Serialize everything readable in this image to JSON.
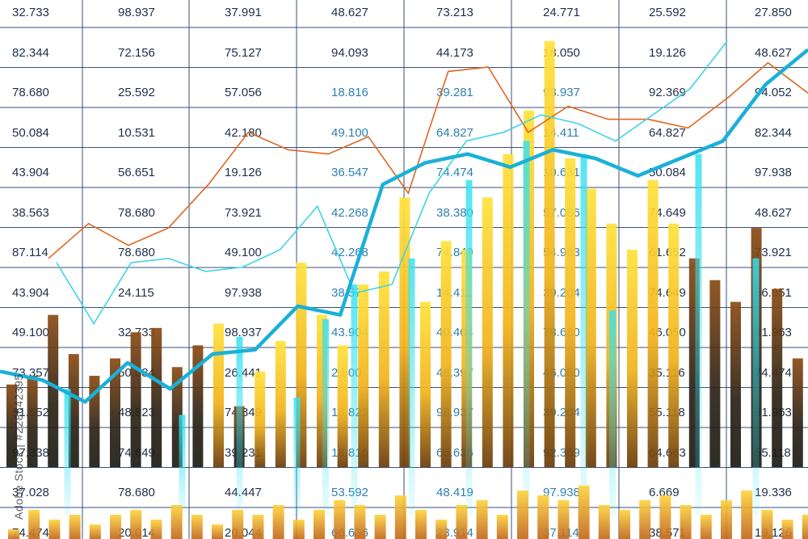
{
  "watermark": "Adobe Stock | #228642395",
  "table": {
    "rows": [
      [
        "32.733",
        "98.937",
        "37.991",
        "48.627",
        "73.213",
        "24.771",
        "25.592",
        "27.850"
      ],
      [
        "82.344",
        "72.156",
        "75.127",
        "94.093",
        "44.173",
        "18.050",
        "19.126",
        "48.627"
      ],
      [
        "78.680",
        "25.592",
        "57.056",
        "18.816",
        "39.281",
        "98.937",
        "92.369",
        "94.052"
      ],
      [
        "50.084",
        "10.531",
        "42.180",
        "49.100",
        "64.827",
        "14.411",
        "64.827",
        "82.344"
      ],
      [
        "43.904",
        "56.651",
        "19.126",
        "36.547",
        "74.474",
        "10.631",
        "50.084",
        "97.938"
      ],
      [
        "38.563",
        "78.680",
        "73.921",
        "42.268",
        "38.380",
        "57.056",
        "74.649",
        "48.627"
      ],
      [
        "87.114",
        "78.680",
        "49.100",
        "42.268",
        "74.849",
        "54.963",
        "61.652",
        "73.921"
      ],
      [
        "43.904",
        "24.115",
        "97.938",
        "38.571",
        "14.411",
        "39.204",
        "74.649",
        "56.651"
      ],
      [
        "49.100",
        "32.733",
        "98.937",
        "43.904",
        "40.404",
        "78.680",
        "46.050",
        "91.963"
      ],
      [
        "73.357",
        "50.084",
        "26.441",
        "2.500",
        "48.397",
        "46.050",
        "35.116",
        "74.474"
      ],
      [
        "91.652",
        "48.823",
        "74.849",
        "18.823",
        "98.937",
        "39.204",
        "55.118",
        "91.963"
      ],
      [
        "97.338",
        "74.649",
        "39.231",
        "18.816",
        "66.636",
        "92.369",
        "64.663",
        "55.118"
      ],
      [
        "37.028",
        "78.680",
        "44.447",
        "53.592",
        "48.419",
        "97.938",
        "6.669",
        "19.336"
      ],
      [
        "74.474",
        "20.014",
        "20.044",
        "66.636",
        "23.914",
        "37.114",
        "38.571",
        "19.126"
      ]
    ]
  },
  "colors": {
    "gridline": "#3a4f7a",
    "orange_line": "#e0661e",
    "cyan_thin_line": "#3fd2e8",
    "cyan_thick_line": "#1ab0d8",
    "bar_gold": "#f2b21a",
    "bar_dark": "#1b1b14",
    "bar_cyan": "#35e0f0"
  },
  "chart_data": {
    "type": "bar",
    "orange_line": [
      48,
      56,
      51,
      55,
      65,
      77,
      73,
      72,
      76,
      63,
      91,
      92,
      77,
      83,
      80,
      80,
      78,
      85,
      93,
      86
    ],
    "cyan_thin_line": [
      47,
      33,
      47,
      48,
      45,
      46,
      50,
      60,
      40,
      42,
      63,
      75,
      77,
      81,
      79,
      75,
      81,
      87,
      98
    ],
    "cyan_thick_line": [
      22,
      20,
      15,
      24,
      18,
      26,
      27,
      37,
      35,
      65,
      70,
      72,
      69,
      73,
      71,
      67,
      71,
      75,
      88,
      96
    ],
    "bar_heights": [
      19,
      21,
      35,
      26,
      21,
      25,
      31,
      32,
      23,
      28,
      33,
      14,
      22,
      29,
      47,
      35,
      28,
      42,
      45,
      62,
      38,
      52,
      50,
      62,
      72,
      82,
      98,
      71,
      64,
      56,
      50,
      66,
      56,
      48,
      43,
      38,
      55,
      41,
      25,
      16
    ],
    "bar_tones": [
      "dark",
      "dark",
      "dark",
      "dark",
      "dark",
      "dark",
      "dark",
      "dark",
      "dark",
      "dark",
      "gold",
      "dark",
      "gold",
      "gold",
      "gold",
      "gold",
      "gold",
      "gold",
      "gold",
      "gold",
      "gold",
      "gold",
      "gold",
      "gold",
      "gold",
      "gold",
      "gold",
      "gold",
      "gold",
      "gold",
      "gold",
      "gold",
      "gold",
      "dark",
      "dark",
      "dark",
      "dark",
      "dark",
      "dark",
      "dark"
    ],
    "cyan_bars": [
      0,
      18,
      0,
      0,
      0,
      12,
      0,
      30,
      0,
      16,
      34,
      42,
      0,
      48,
      0,
      66,
      0,
      75,
      0,
      72,
      36,
      0,
      0,
      72,
      0,
      48,
      0,
      57
    ],
    "small_bars": [
      2,
      6,
      4,
      5,
      3,
      5,
      6,
      4,
      7,
      5,
      3,
      6,
      5,
      7,
      4,
      6,
      8,
      7,
      5,
      9,
      6,
      4,
      7,
      8,
      5,
      10,
      9,
      8,
      11,
      7,
      6,
      8,
      9,
      7,
      5,
      8,
      10,
      6,
      4,
      5
    ]
  }
}
